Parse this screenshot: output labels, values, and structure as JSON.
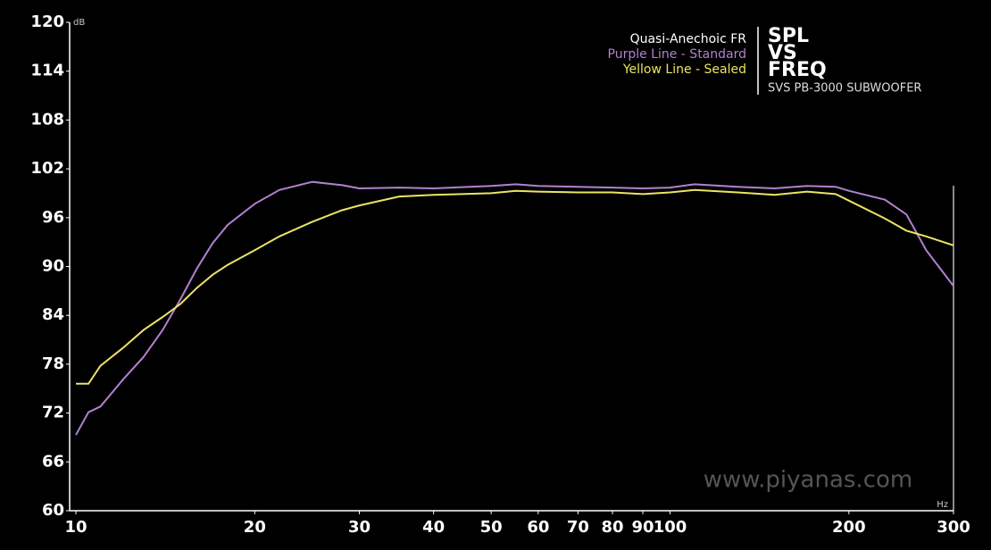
{
  "chart_data": {
    "type": "line",
    "title": [
      "SPL",
      "VS",
      "FREQ"
    ],
    "subtitle": "SVS PB-3000 SUBWOOFER",
    "legend_heading": "Quasi-Anechoic FR",
    "y_label": "dB",
    "x_label": "Hz",
    "watermark": "www.piyanas.com",
    "x_log": true,
    "x": [
      10,
      10.5,
      11,
      12,
      13,
      14,
      15,
      16,
      17,
      18,
      20,
      22,
      25,
      28,
      30,
      35,
      40,
      50,
      55,
      60,
      70,
      80,
      90,
      100,
      110,
      130,
      150,
      170,
      190,
      200,
      230,
      250,
      270,
      300
    ],
    "series": [
      {
        "name": "Purple Line - Standard",
        "color": "#b281d2",
        "values": [
          69.3,
          72.1,
          72.8,
          76.1,
          78.9,
          82.2,
          86.0,
          89.8,
          92.9,
          95.1,
          97.7,
          99.4,
          100.4,
          100.0,
          99.6,
          99.7,
          99.6,
          99.9,
          100.1,
          99.9,
          99.8,
          99.7,
          99.6,
          99.7,
          100.1,
          99.8,
          99.6,
          99.9,
          99.8,
          99.3,
          98.2,
          96.4,
          92.0,
          87.6
        ]
      },
      {
        "name": "Yellow Line - Sealed",
        "color": "#ece463",
        "values": [
          75.6,
          75.6,
          77.8,
          80.0,
          82.2,
          83.8,
          85.4,
          87.4,
          89.0,
          90.2,
          92.0,
          93.7,
          95.5,
          96.9,
          97.5,
          98.6,
          98.8,
          99.0,
          99.3,
          99.2,
          99.1,
          99.1,
          98.9,
          99.1,
          99.4,
          99.1,
          98.8,
          99.2,
          98.9,
          98.1,
          95.9,
          94.4,
          93.7,
          92.6
        ]
      }
    ],
    "xlim": [
      10,
      300
    ],
    "xticks": [
      10,
      20,
      30,
      40,
      50,
      60,
      70,
      80,
      90,
      100,
      200,
      300
    ],
    "ylim": [
      60,
      120
    ],
    "yticks": [
      60,
      66,
      72,
      78,
      84,
      90,
      96,
      102,
      108,
      114,
      120
    ]
  }
}
